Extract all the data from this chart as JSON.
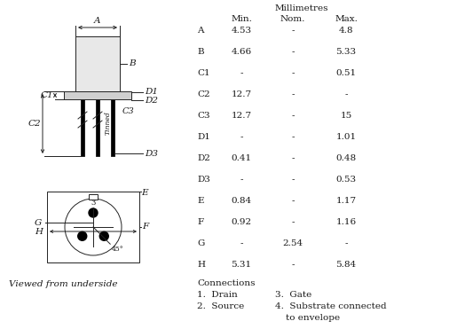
{
  "title": "Millimetres",
  "table_header": [
    "",
    "Min.",
    "Nom.",
    "Max."
  ],
  "table_rows": [
    [
      "A",
      "4.53",
      "-",
      "4.8"
    ],
    [
      "B",
      "4.66",
      "-",
      "5.33"
    ],
    [
      "C1",
      "-",
      "-",
      "0.51"
    ],
    [
      "C2",
      "12.7",
      "-",
      "-"
    ],
    [
      "C3",
      "12.7",
      "-",
      "15"
    ],
    [
      "D1",
      "-",
      "-",
      "1.01"
    ],
    [
      "D2",
      "0.41",
      "-",
      "0.48"
    ],
    [
      "D3",
      "-",
      "-",
      "0.53"
    ],
    [
      "E",
      "0.84",
      "-",
      "1.17"
    ],
    [
      "F",
      "0.92",
      "-",
      "1.16"
    ],
    [
      "G",
      "-",
      "2.54",
      "-"
    ],
    [
      "H",
      "5.31",
      "-",
      "5.84"
    ]
  ],
  "connections_title": "Connections",
  "viewed_text": "Viewed from underside",
  "bg_color": "#ffffff",
  "text_color": "#1a1a1a",
  "font_size": 7.5,
  "lw": 0.7
}
